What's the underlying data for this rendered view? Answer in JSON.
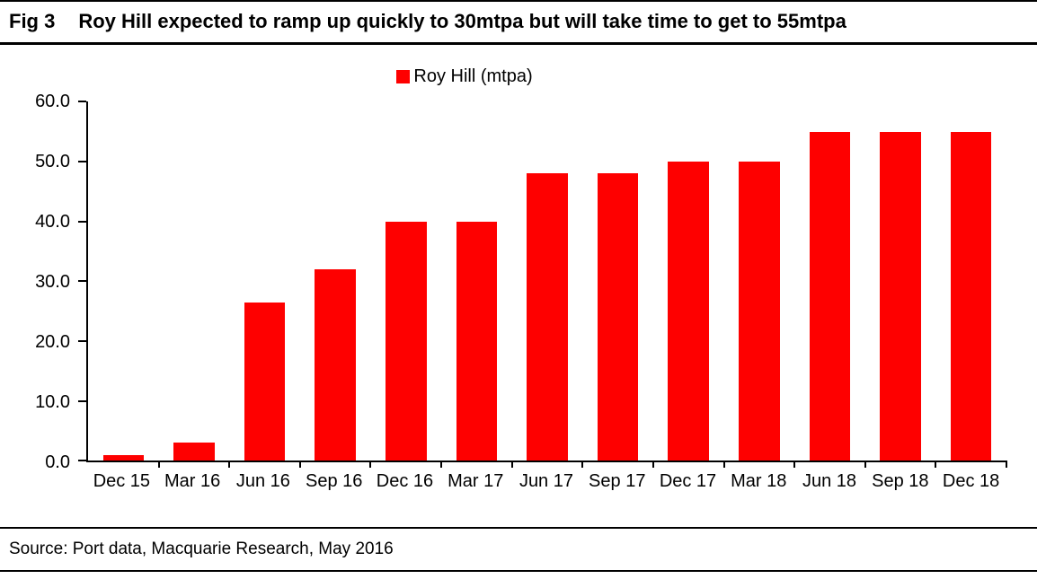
{
  "figure": {
    "label": "Fig 3",
    "title": "Roy Hill expected to ramp up quickly to 30mtpa but will take time to get to 55mtpa",
    "source": "Source: Port data, Macquarie Research, May 2016"
  },
  "chart_data": {
    "type": "bar",
    "title": "Roy Hill expected to ramp up quickly to 30mtpa but will take time to get to 55mtpa",
    "legend": [
      "Roy Hill (mtpa)"
    ],
    "legend_position": "top-center",
    "categories": [
      "Dec 15",
      "Mar 16",
      "Jun 16",
      "Sep 16",
      "Dec 16",
      "Mar 17",
      "Jun 17",
      "Sep 17",
      "Dec 17",
      "Mar 18",
      "Jun 18",
      "Sep 18",
      "Dec 18"
    ],
    "values": [
      1.0,
      3.0,
      26.5,
      32.0,
      40.0,
      40.0,
      48.0,
      48.0,
      50.0,
      50.0,
      55.0,
      55.0,
      55.0
    ],
    "xlabel": "",
    "ylabel": "",
    "ylim": [
      0,
      60
    ],
    "ytick_step": 10,
    "ytick_labels": [
      "0.0",
      "10.0",
      "20.0",
      "30.0",
      "40.0",
      "50.0",
      "60.0"
    ],
    "grid": false,
    "bar_color": "#fe0000",
    "axis_color": "#000000"
  }
}
